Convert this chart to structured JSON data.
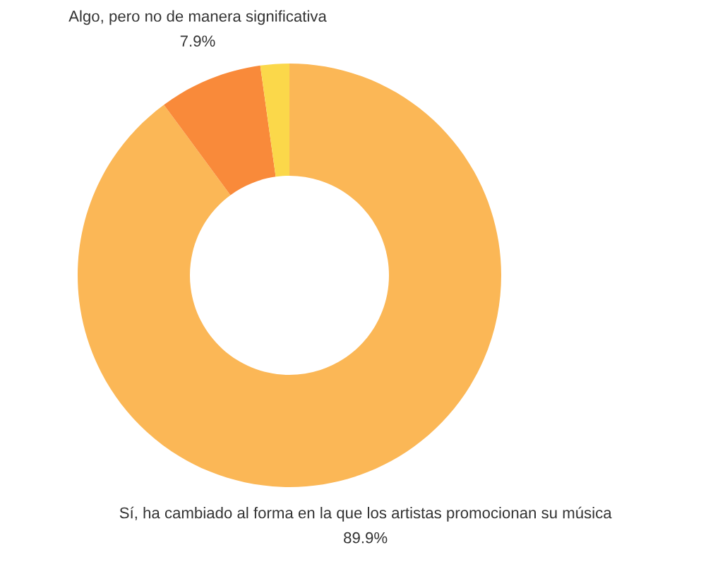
{
  "chart_data": {
    "type": "donut",
    "categories": [
      "Sí, ha cambiado al forma en la que los artistas promocionan su música",
      "Algo, pero no de manera significativa",
      null
    ],
    "values": [
      89.9,
      7.9,
      2.2
    ],
    "colors": [
      "#fbb756",
      "#f98a3a",
      "#fbd84a"
    ],
    "value_labels": [
      "89.9%",
      "7.9%",
      null
    ]
  }
}
